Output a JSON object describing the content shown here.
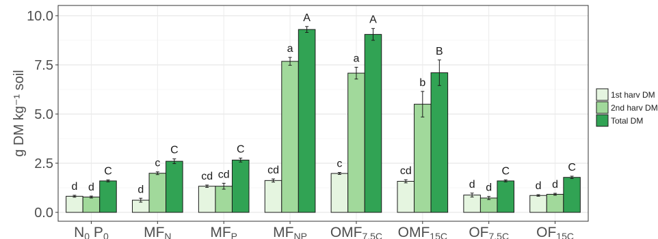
{
  "chart_data": {
    "type": "bar",
    "ylabel": "g DM kg⁻¹ soil",
    "ylim": [
      0,
      10
    ],
    "yticks": [
      "0.0",
      "2.5",
      "5.0",
      "7.5",
      "10.0"
    ],
    "grid": true,
    "legend_position": "right",
    "categories": [
      {
        "base": "N",
        "sub": "0",
        "base2": " P",
        "sub2": "0"
      },
      {
        "base": "MF",
        "sub": "N"
      },
      {
        "base": "MF",
        "sub": "P"
      },
      {
        "base": "MF",
        "sub": "NP"
      },
      {
        "base": "OMF",
        "sub": "7.5C"
      },
      {
        "base": "OMF",
        "sub": "15C"
      },
      {
        "base": "OF",
        "sub": "7.5C"
      },
      {
        "base": "OF",
        "sub": "15C"
      }
    ],
    "series": [
      {
        "name": "1st harv DM",
        "color": "#e5f5e0",
        "values": [
          0.82,
          0.62,
          1.33,
          1.62,
          1.98,
          1.58,
          0.88,
          0.86
        ],
        "errors": [
          0.05,
          0.1,
          0.06,
          0.08,
          0.05,
          0.08,
          0.1,
          0.04
        ],
        "letters": [
          "d",
          "d",
          "cd",
          "cd",
          "c",
          "cd",
          "d",
          "d"
        ]
      },
      {
        "name": "2nd harv DM",
        "color": "#a1d99b",
        "values": [
          0.78,
          1.99,
          1.33,
          7.68,
          7.08,
          5.5,
          0.73,
          0.92
        ],
        "errors": [
          0.05,
          0.07,
          0.15,
          0.2,
          0.3,
          0.65,
          0.08,
          0.05
        ],
        "letters": [
          "d",
          "c",
          "cd",
          "a",
          "a",
          "b",
          "d",
          "d"
        ]
      },
      {
        "name": "Total DM",
        "color": "#31a354",
        "values": [
          1.6,
          2.6,
          2.66,
          9.3,
          9.05,
          7.1,
          1.6,
          1.78
        ],
        "errors": [
          0.05,
          0.12,
          0.1,
          0.15,
          0.3,
          0.65,
          0.05,
          0.06
        ],
        "letters": [
          "C",
          "C",
          "C",
          "A",
          "A",
          "B",
          "C",
          "C"
        ]
      }
    ]
  }
}
